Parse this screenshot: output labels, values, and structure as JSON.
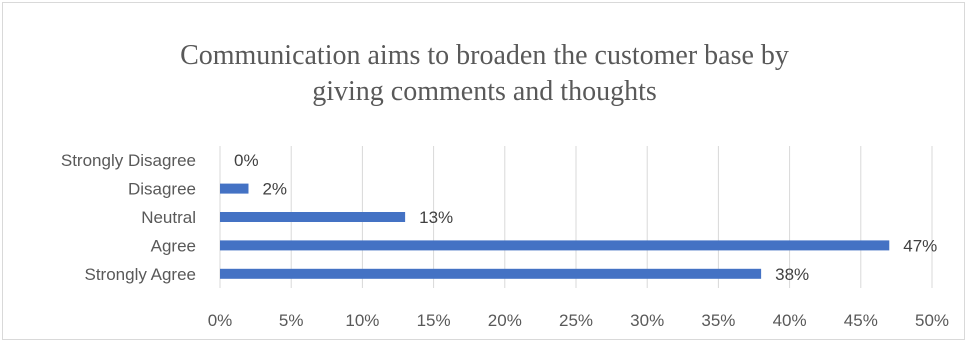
{
  "chart_data": {
    "type": "bar",
    "orientation": "horizontal",
    "title_lines": [
      "Communication aims to broaden the customer base by",
      "giving comments and thoughts"
    ],
    "categories": [
      "Strongly Disagree",
      "Disagree",
      "Neutral",
      "Agree",
      "Strongly Agree"
    ],
    "values": [
      0,
      2,
      13,
      47,
      38
    ],
    "value_labels": [
      "0%",
      "2%",
      "13%",
      "47%",
      "38%"
    ],
    "x_ticks": [
      "0%",
      "5%",
      "10%",
      "15%",
      "20%",
      "25%",
      "30%",
      "35%",
      "40%",
      "45%",
      "50%"
    ],
    "xlim": [
      0,
      50
    ],
    "grid": true,
    "legend": "none",
    "colors": {
      "bar": "#4472c4",
      "grid": "#d9d9d9",
      "text": "#595959"
    }
  }
}
